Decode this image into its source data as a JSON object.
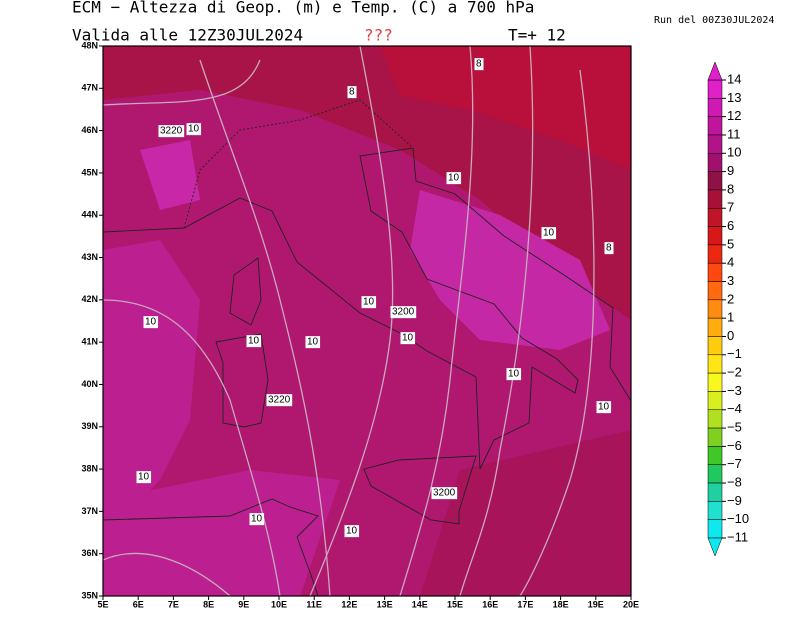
{
  "header": {
    "title": "ECM − Altezza di Geop. (m) e Temp. (C) a 700 hPa",
    "valid": "Valida alle 12Z30JUL2024",
    "flag": "???",
    "step": "T=+ 12",
    "run": "Run del 00Z30JUL2024"
  },
  "map": {
    "lat_labels": [
      "35N",
      "36N",
      "37N",
      "38N",
      "39N",
      "40N",
      "41N",
      "42N",
      "43N",
      "44N",
      "45N",
      "46N",
      "47N",
      "48N"
    ],
    "lon_labels": [
      "5E",
      "6E",
      "7E",
      "8E",
      "9E",
      "10E",
      "11E",
      "12E",
      "13E",
      "14E",
      "15E",
      "16E",
      "17E",
      "18E",
      "19E",
      "20E"
    ],
    "contour_labels": [
      "8",
      "8",
      "3220",
      "10",
      "10",
      "10",
      "8",
      "10",
      "3200",
      "10",
      "10",
      "10",
      "10",
      "10",
      "3220",
      "10",
      "10",
      "3200",
      "10",
      "10"
    ]
  },
  "colorbar": {
    "labels": [
      "14",
      "13",
      "12",
      "11",
      "10",
      "9",
      "8",
      "7",
      "6",
      "5",
      "4",
      "3",
      "2",
      "1",
      "0",
      "−1",
      "−2",
      "−3",
      "−4",
      "−5",
      "−6",
      "−7",
      "−8",
      "−9",
      "−10",
      "−11"
    ],
    "colors": [
      "#e020c8",
      "#d018b4",
      "#c0149c",
      "#b01488",
      "#a0106c",
      "#901048",
      "#a8103a",
      "#c01428",
      "#d81818",
      "#ec2810",
      "#ff4810",
      "#ff6a10",
      "#ff8c10",
      "#ffac10",
      "#ffcc10",
      "#ffe418",
      "#f8f820",
      "#d8f020",
      "#b0e020",
      "#80d020",
      "#40c828",
      "#20c860",
      "#20d0a0",
      "#20e0d0",
      "#10e8f0"
    ]
  }
}
